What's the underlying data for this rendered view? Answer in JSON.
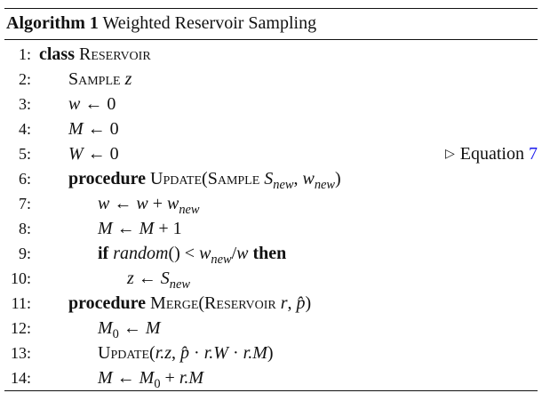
{
  "caption": {
    "label": "Algorithm 1",
    "title": "Weighted Reservoir Sampling"
  },
  "lines": [
    {
      "num": "1:",
      "kw": "class",
      "name": "Reservoir"
    },
    {
      "num": "2:",
      "name": "Sample",
      "var": "z"
    },
    {
      "num": "3:",
      "lhs": "w",
      "arrow": "←",
      "rhs": "0"
    },
    {
      "num": "4:",
      "lhs": "M",
      "arrow": "←",
      "rhs": "0"
    },
    {
      "num": "5:",
      "lhs": "W",
      "arrow": "←",
      "rhs": "0",
      "comment_text": "Equation",
      "comment_ref": "7",
      "comment_marker": "▷"
    },
    {
      "num": "6:",
      "kw": "procedure",
      "name": "Update",
      "open": "(",
      "arg_type": "Sample",
      "arg1": "S",
      "arg1_sub": "new",
      "sep": ", ",
      "arg2": "w",
      "arg2_sub": "new",
      "close": ")"
    },
    {
      "num": "7:",
      "lhs": "w",
      "arrow": "←",
      "rhs_a": "w",
      "op": "+",
      "rhs_b": "w",
      "rhs_b_sub": "new"
    },
    {
      "num": "8:",
      "lhs": "M",
      "arrow": "←",
      "rhs_a": "M",
      "op": "+",
      "rhs_b": "1"
    },
    {
      "num": "9:",
      "kw": "if",
      "call": "random",
      "parens": "()",
      "cmp": "<",
      "a": "w",
      "a_sub": "new",
      "slash": "/",
      "b": "w",
      "kw2": "then"
    },
    {
      "num": "10:",
      "lhs": "z",
      "arrow": "←",
      "rhs": "S",
      "rhs_sub": "new"
    },
    {
      "num": "11:",
      "kw": "procedure",
      "name": "Merge",
      "open": "(",
      "arg_type": "Reservoir",
      "arg1": "r",
      "sep": ", ",
      "arg2": "p̂",
      "close": ")"
    },
    {
      "num": "12:",
      "lhs": "M",
      "lhs_sub": "0",
      "arrow": "←",
      "rhs": "M"
    },
    {
      "num": "13:",
      "name": "Update",
      "open": "(",
      "a": "r.z",
      "sep": ", ",
      "b": "p̂",
      "dot1": "·",
      "c": "r.W",
      "dot2": "·",
      "d": "r.M",
      "close": ")"
    },
    {
      "num": "14:",
      "lhs": "M",
      "arrow": "←",
      "rhs_a": "M",
      "rhs_a_sub": "0",
      "op": "+",
      "rhs_b": "r.M"
    }
  ]
}
